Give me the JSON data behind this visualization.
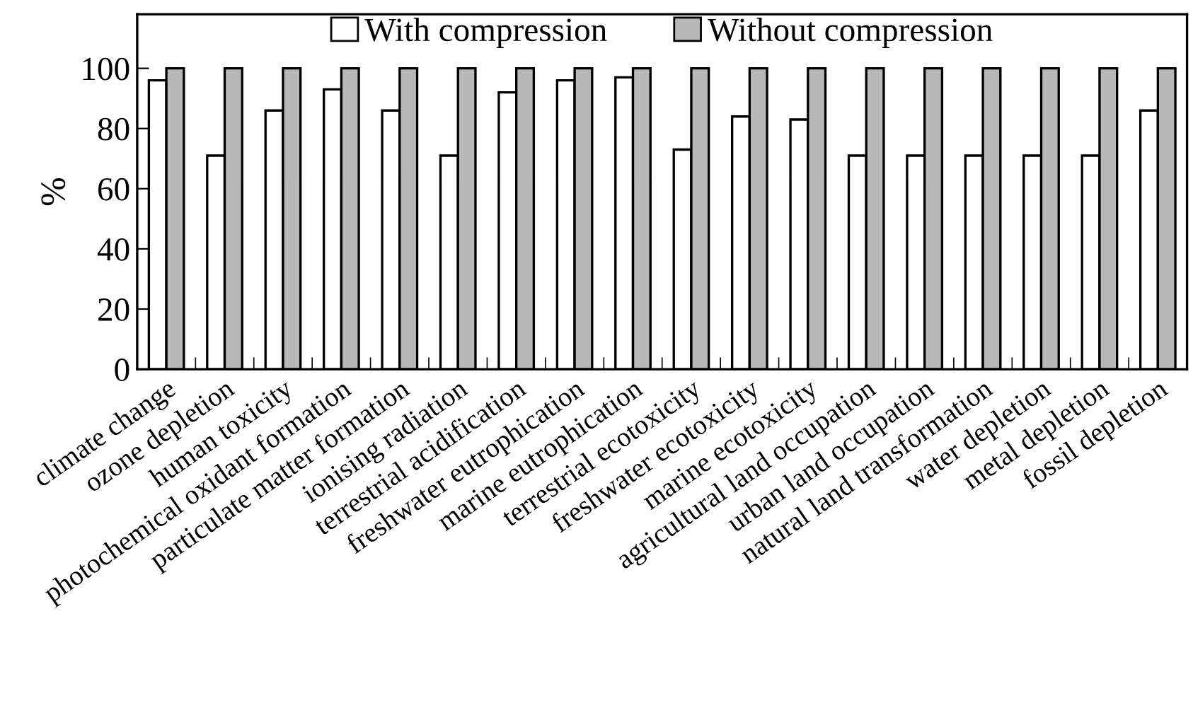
{
  "chart_data": {
    "type": "bar",
    "ylabel": "%",
    "categories": [
      "climate change",
      "ozone depletion",
      "human toxicity",
      "photochemical oxidant formation",
      "particulate matter formation",
      "ionising radiation",
      "terrestrial acidification",
      "freshwater eutrophication",
      "marine eutrophication",
      "terrestrial ecotoxicity",
      "freshwater ecotoxicity",
      "marine ecotoxicity",
      "agricultural land occupation",
      "urban land occupation",
      "natural land transformation",
      "water depletion",
      "metal depletion",
      "fossil depletion"
    ],
    "series": [
      {
        "name": "With compression",
        "color": "#ffffff",
        "values": [
          96,
          71,
          86,
          93,
          86,
          71,
          92,
          96,
          97,
          73,
          84,
          83,
          71,
          71,
          71,
          71,
          71,
          86
        ]
      },
      {
        "name": "Without compression",
        "color": "#b8b8b8",
        "values": [
          100,
          100,
          100,
          100,
          100,
          100,
          100,
          100,
          100,
          100,
          100,
          100,
          100,
          100,
          100,
          100,
          100,
          100
        ]
      }
    ],
    "ylim": [
      0,
      118
    ],
    "yticks": [
      0,
      20,
      40,
      60,
      80,
      100
    ],
    "grid": false,
    "legend": "top"
  }
}
